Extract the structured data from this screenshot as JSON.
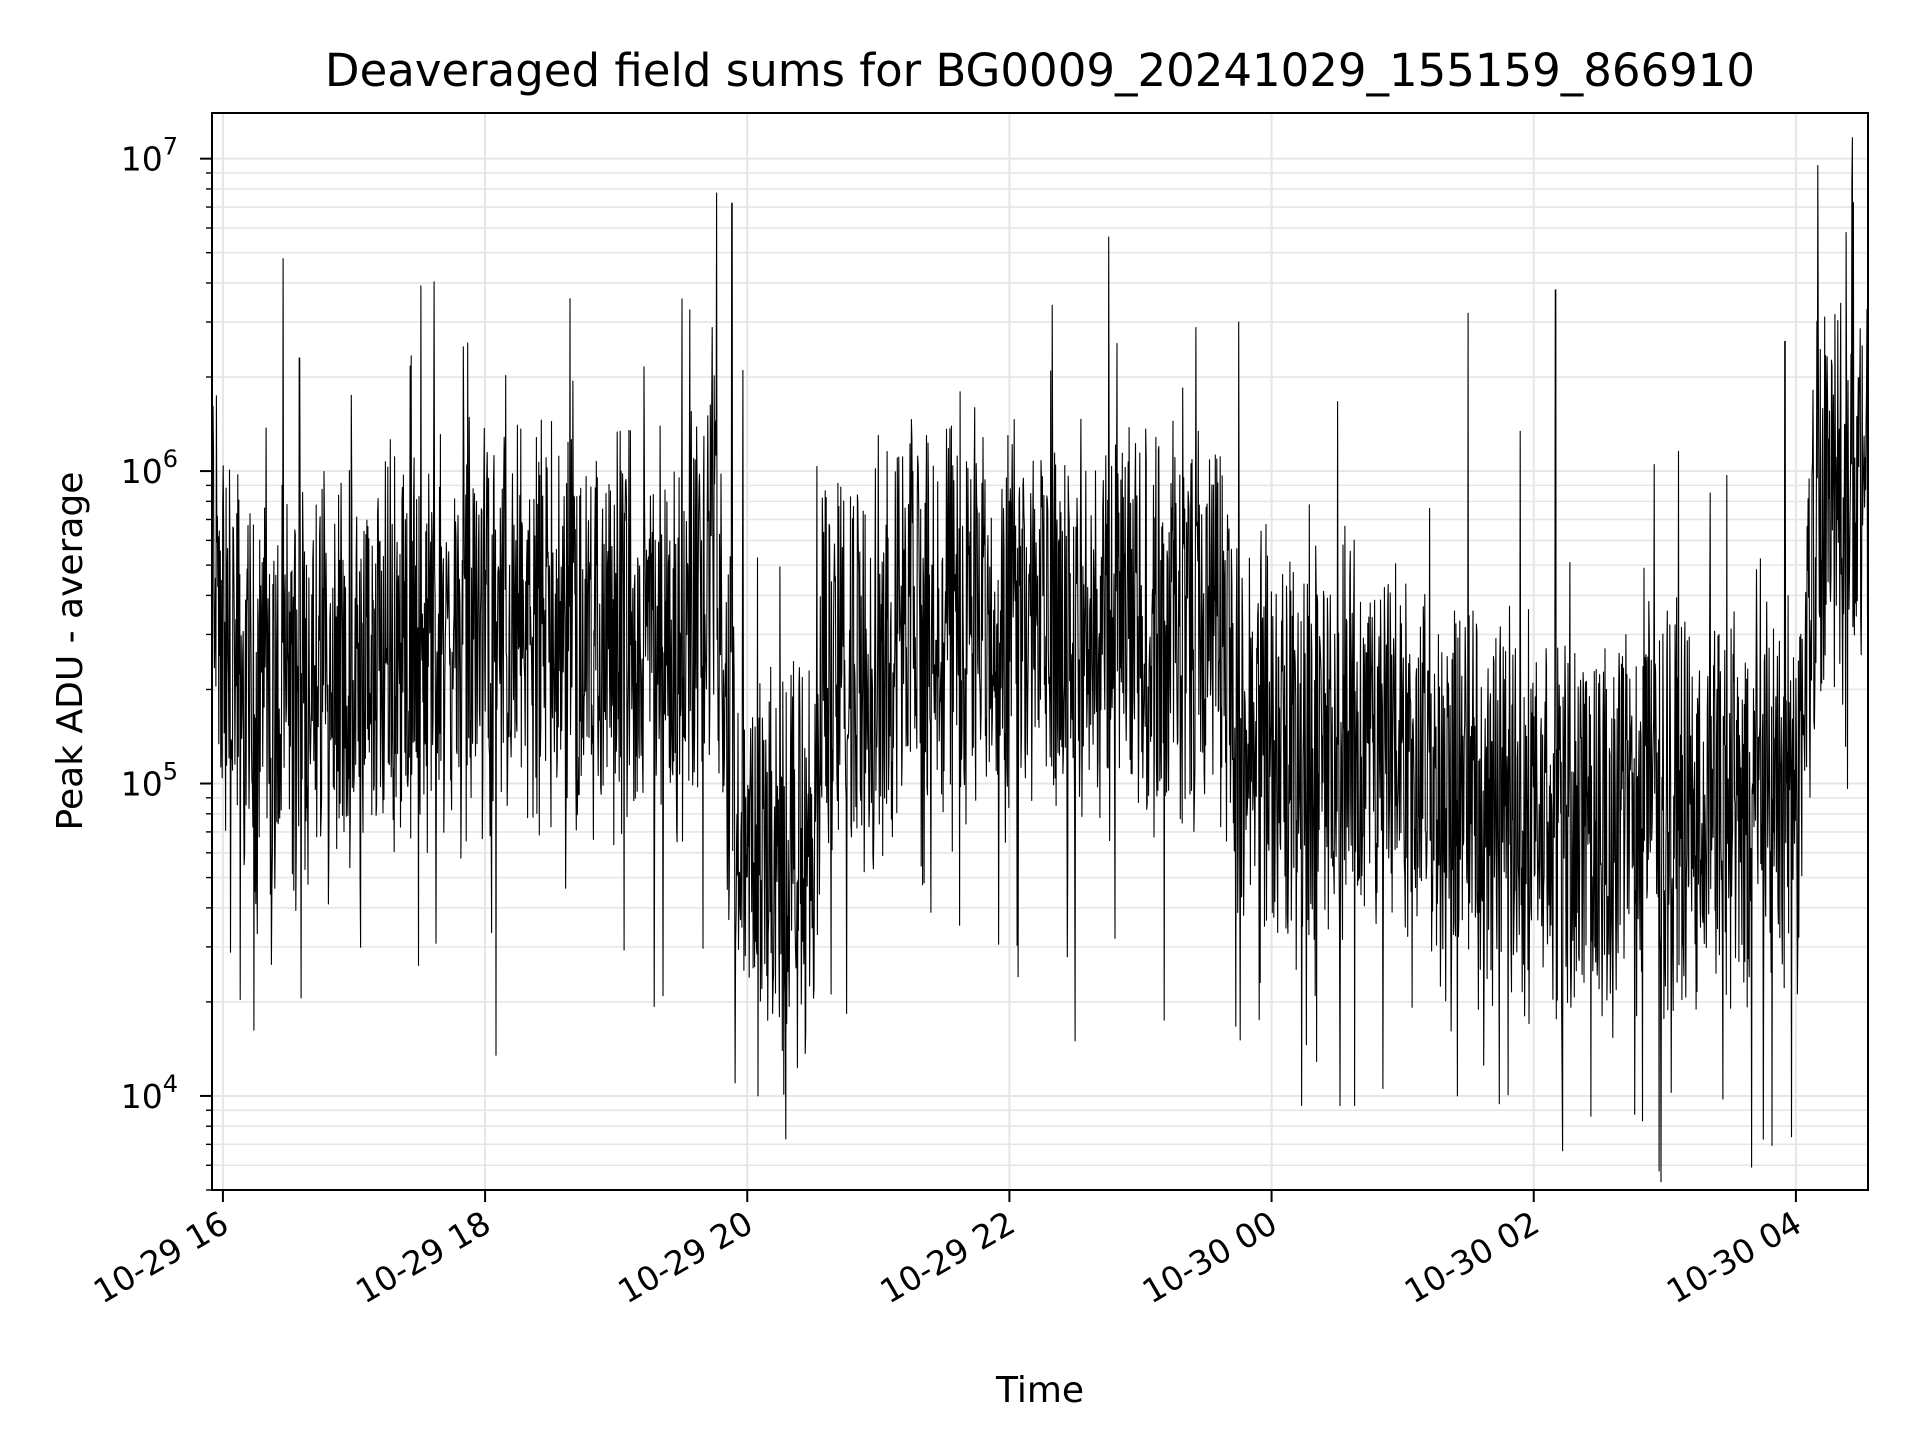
{
  "chart_data": {
    "type": "line",
    "title": "Deaveraged field sums for BG0009_20241029_155159_866910",
    "xlabel": "Time",
    "ylabel": "Peak ADU - average",
    "y_scale": "log",
    "ylim": [
      5000,
      14000000
    ],
    "xlim": [
      "2024-10-29 15:55",
      "2024-10-30 04:33"
    ],
    "grid": true,
    "line_color": "#000000",
    "grid_color": "#e6e6e6",
    "x_tick_labels": [
      "10-29 16",
      "10-29 18",
      "10-29 20",
      "10-29 22",
      "10-30 00",
      "10-30 02",
      "10-30 04"
    ],
    "x_ticks": [
      "2024-10-29 16:00",
      "2024-10-29 18:00",
      "2024-10-29 20:00",
      "2024-10-29 22:00",
      "2024-10-30 00:00",
      "2024-10-30 02:00",
      "2024-10-30 04:00"
    ],
    "y_tick_labels": [
      {
        "base": "10",
        "exp": "4",
        "value": 10000
      },
      {
        "base": "10",
        "exp": "5",
        "value": 100000
      },
      {
        "base": "10",
        "exp": "6",
        "value": 1000000
      },
      {
        "base": "10",
        "exp": "7",
        "value": 10000000
      }
    ],
    "series": [
      {
        "x": [
          "2024-10-29 15:55",
          "2024-10-29 16:00",
          "2024-10-29 16:15",
          "2024-10-29 16:30",
          "2024-10-29 17:00",
          "2024-10-29 17:30",
          "2024-10-29 18:00",
          "2024-10-29 18:30",
          "2024-10-29 19:00",
          "2024-10-29 19:30",
          "2024-10-29 19:45",
          "2024-10-29 19:55",
          "2024-10-29 20:00",
          "2024-10-29 20:15",
          "2024-10-29 20:30",
          "2024-10-29 20:35",
          "2024-10-29 21:00",
          "2024-10-29 21:30",
          "2024-10-29 22:00",
          "2024-10-29 22:30",
          "2024-10-29 23:00",
          "2024-10-29 23:30",
          "2024-10-29 23:40",
          "2024-10-29 23:45",
          "2024-10-30 00:00",
          "2024-10-30 00:30",
          "2024-10-30 01:00",
          "2024-10-30 01:10",
          "2024-10-30 01:30",
          "2024-10-30 02:00",
          "2024-10-30 02:30",
          "2024-10-30 03:00",
          "2024-10-30 03:30",
          "2024-10-30 04:00",
          "2024-10-30 04:10",
          "2024-10-30 04:20",
          "2024-10-30 04:33"
        ],
        "y": [
          800000,
          300000,
          150000,
          200000,
          220000,
          260000,
          300000,
          320000,
          280000,
          300000,
          600000,
          80000,
          60000,
          50000,
          60000,
          250000,
          220000,
          400000,
          350000,
          300000,
          320000,
          300000,
          280000,
          120000,
          140000,
          120000,
          150000,
          100000,
          90000,
          80000,
          75000,
          85000,
          80000,
          80000,
          800000,
          900000,
          1000000
        ],
        "spikes": [
          {
            "x": "2024-10-29 16:35",
            "y": 2300000
          },
          {
            "x": "2024-10-29 17:50",
            "y": 2500000
          },
          {
            "x": "2024-10-29 19:53",
            "y": 7200000
          },
          {
            "x": "2024-10-29 19:58",
            "y": 2100000
          },
          {
            "x": "2024-10-29 21:00",
            "y": 1300000
          },
          {
            "x": "2024-10-29 23:45",
            "y": 3000000
          },
          {
            "x": "2024-10-30 01:30",
            "y": 3200000
          },
          {
            "x": "2024-10-30 02:10",
            "y": 3800000
          },
          {
            "x": "2024-10-30 03:55",
            "y": 2600000
          },
          {
            "x": "2024-10-30 04:10",
            "y": 9500000
          },
          {
            "x": "2024-10-30 04:23",
            "y": 5800000
          },
          {
            "x": "2024-10-29 20:05",
            "y": 10000
          },
          {
            "x": "2024-10-30 01:25",
            "y": 10000
          },
          {
            "x": "2024-10-30 03:58",
            "y": 7400
          },
          {
            "x": "2024-10-29 18:05",
            "y": 13500
          },
          {
            "x": "2024-10-29 22:30",
            "y": 15000
          }
        ]
      }
    ]
  }
}
